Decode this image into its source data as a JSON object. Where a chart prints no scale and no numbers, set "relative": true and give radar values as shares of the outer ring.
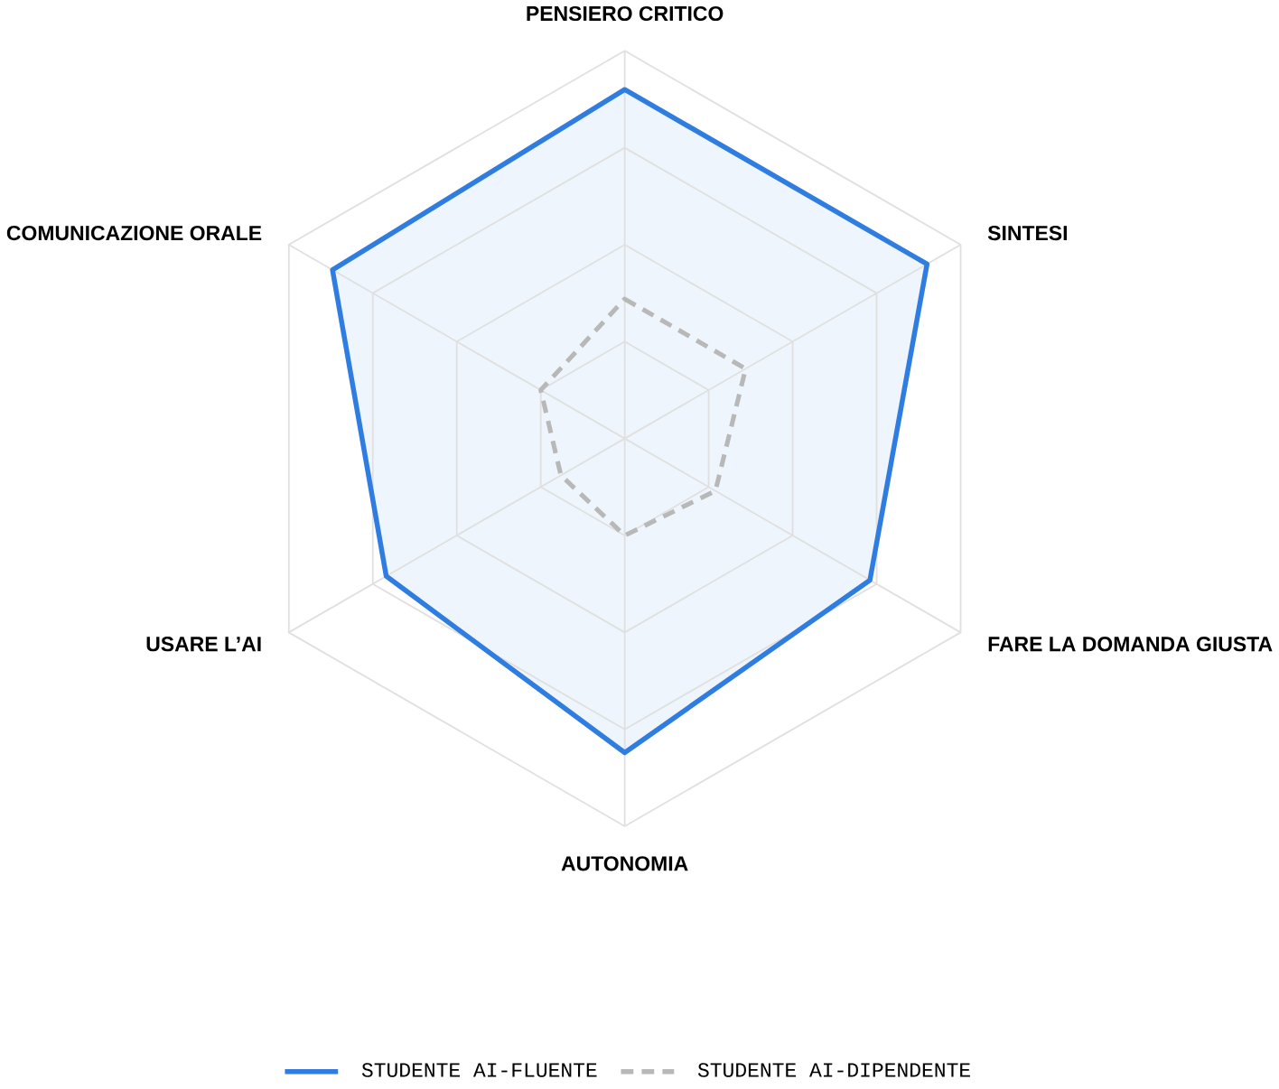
{
  "chart_data": {
    "type": "radar",
    "relative": true,
    "grid": true,
    "legend": "bottom",
    "categories": [
      "PENSIERO CRITICO",
      "SINTESI",
      "FARE LA DOMANDA GIUSTA",
      "AUTONOMIA",
      "USARE L’AI",
      "COMUNICAZIONE ORALE"
    ],
    "series": [
      {
        "name": "STUDENTE AI-FLUENTE",
        "color": "#2f7de1",
        "line_style": "solid",
        "values": [
          0.9,
          0.9,
          0.73,
          0.81,
          0.71,
          0.87
        ]
      },
      {
        "name": "STUDENTE AI-DIPENDENTE",
        "color": "#b8b8b8",
        "line_style": "dashed",
        "values": [
          0.36,
          0.36,
          0.27,
          0.25,
          0.19,
          0.25
        ]
      }
    ]
  }
}
